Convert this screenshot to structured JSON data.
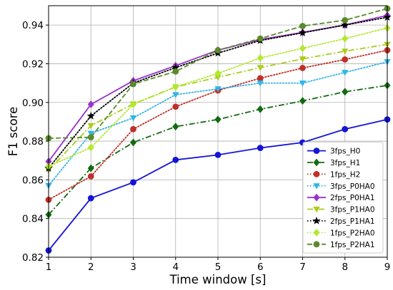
{
  "chart_data": {
    "type": "line",
    "title": "",
    "xlabel": "Time window [s]",
    "ylabel": "F1 score",
    "x": [
      1,
      2,
      3,
      4,
      5,
      6,
      7,
      8,
      9
    ],
    "xlim": [
      1,
      9
    ],
    "ylim": [
      0.82,
      0.95
    ],
    "xticks": [
      "1",
      "2",
      "3",
      "4",
      "5",
      "6",
      "7",
      "8",
      "9"
    ],
    "yticks": [
      "0.82",
      "0.84",
      "0.86",
      "0.88",
      "0.90",
      "0.92",
      "0.94"
    ],
    "grid": true,
    "legend_position": "lower-right",
    "series": [
      {
        "name": "3fps_H0",
        "color": "#1515d6",
        "dash": "solid",
        "marker": "circle",
        "values": [
          0.8235,
          0.8505,
          0.8587,
          0.8703,
          0.8729,
          0.8765,
          0.8793,
          0.8862,
          0.8912
        ]
      },
      {
        "name": "3fps_H1",
        "color": "#136b13",
        "dash": "dashdot",
        "marker": "diamond",
        "values": [
          0.842,
          0.866,
          0.8793,
          0.8875,
          0.8912,
          0.8965,
          0.9008,
          0.9055,
          0.9088
        ]
      },
      {
        "name": "1fps_H2",
        "color": "#c0302a",
        "dash": "dotted",
        "marker": "circle",
        "values": [
          0.8497,
          0.8618,
          0.8862,
          0.8978,
          0.9062,
          0.9125,
          0.9178,
          0.9222,
          0.927
        ]
      },
      {
        "name": "3fps_P0HA0",
        "color": "#31b5e8",
        "dash": "dotted",
        "marker": "triangle-down",
        "values": [
          0.857,
          0.884,
          0.892,
          0.904,
          0.907,
          0.91,
          0.91,
          0.9155,
          0.921
        ]
      },
      {
        "name": "2fps_P0HA1",
        "color": "#9932c8",
        "dash": "solid",
        "marker": "diamond",
        "values": [
          0.8695,
          0.899,
          0.9112,
          0.919,
          0.927,
          0.9325,
          0.9362,
          0.94,
          0.945
        ]
      },
      {
        "name": "3fps_P1HA0",
        "color": "#aacc1a",
        "dash": "dashdot",
        "marker": "triangle-down",
        "values": [
          0.865,
          0.888,
          0.8992,
          0.908,
          0.913,
          0.918,
          0.9225,
          0.9265,
          0.93
        ]
      },
      {
        "name": "2fps_P1HA1",
        "color": "#000000",
        "dash": "dotted",
        "marker": "star",
        "values": [
          0.866,
          0.893,
          0.91,
          0.918,
          0.9255,
          0.932,
          0.936,
          0.94,
          0.944
        ]
      },
      {
        "name": "1fps_P2HA0",
        "color": "#b3e830",
        "dash": "dotted",
        "marker": "diamond",
        "values": [
          0.867,
          0.8767,
          0.899,
          0.908,
          0.915,
          0.923,
          0.928,
          0.933,
          0.9385
        ]
      },
      {
        "name": "1fps_P2HA1",
        "color": "#5a8a2a",
        "dash": "dashed",
        "marker": "circle",
        "values": [
          0.8815,
          0.882,
          0.9095,
          0.916,
          0.927,
          0.933,
          0.9395,
          0.9425,
          0.9485
        ]
      }
    ]
  }
}
